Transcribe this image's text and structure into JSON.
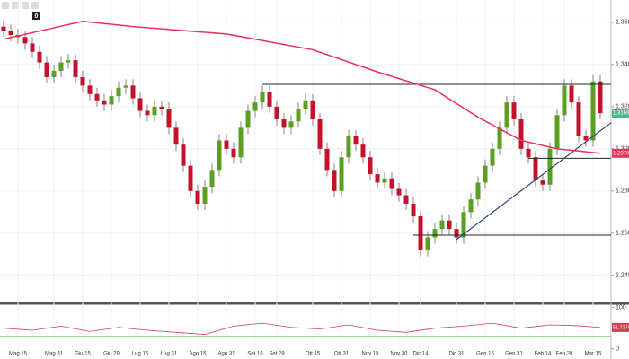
{
  "toolbar": {
    "badge": "0"
  },
  "chart_data": [
    {
      "type": "candlestick",
      "categories": [
        null,
        null,
        "Mag 15",
        null,
        null,
        null,
        null,
        "Mag 31",
        null,
        null,
        null,
        "Giu 15",
        null,
        null,
        null,
        "Giu 29",
        null,
        null,
        null,
        "Lug 16",
        null,
        null,
        null,
        "Lug 31",
        null,
        null,
        null,
        "Ago 15",
        null,
        null,
        null,
        "Ago 31",
        null,
        null,
        null,
        "Set 15",
        null,
        null,
        "Set 28",
        null,
        null,
        null,
        null,
        "Ott 15",
        null,
        null,
        null,
        "Ott 31",
        null,
        null,
        null,
        "Nov 15",
        null,
        null,
        null,
        "Nov 30",
        null,
        null,
        "Dic 14",
        null,
        null,
        null,
        null,
        "Dic 31",
        null,
        null,
        null,
        "Gen 15",
        null,
        null,
        null,
        "Gen 31",
        null,
        null,
        null,
        "Feb 14",
        null,
        null,
        "Feb 28",
        null,
        null,
        null,
        "Mar 15",
        null
      ],
      "open": [
        1.358,
        1.356,
        1.354,
        1.353,
        1.35,
        1.346,
        1.341,
        1.334,
        1.337,
        1.341,
        1.342,
        1.334,
        1.33,
        1.326,
        1.323,
        1.321,
        1.325,
        1.329,
        1.33,
        1.324,
        1.318,
        1.316,
        1.32,
        1.319,
        1.31,
        1.302,
        1.292,
        1.28,
        1.274,
        1.282,
        1.29,
        1.304,
        1.3,
        1.296,
        1.31,
        1.318,
        1.322,
        1.327,
        1.32,
        1.314,
        1.31,
        1.313,
        1.319,
        1.323,
        1.314,
        1.3,
        1.29,
        1.28,
        1.296,
        1.306,
        1.302,
        1.296,
        1.288,
        1.284,
        1.286,
        1.281,
        1.278,
        1.274,
        1.268,
        1.252,
        1.258,
        1.262,
        1.266,
        1.262,
        1.258,
        1.27,
        1.276,
        1.284,
        1.292,
        1.3,
        1.31,
        1.322,
        1.314,
        1.3,
        1.296,
        1.285,
        1.283,
        1.3,
        1.316,
        1.33,
        1.322,
        1.306,
        1.304,
        1.332
      ],
      "high": [
        1.361,
        1.359,
        1.357,
        1.356,
        1.353,
        1.349,
        1.344,
        1.34,
        1.344,
        1.345,
        1.345,
        1.337,
        1.333,
        1.329,
        1.326,
        1.328,
        1.332,
        1.333,
        1.333,
        1.327,
        1.321,
        1.323,
        1.323,
        1.322,
        1.313,
        1.305,
        1.295,
        1.283,
        1.285,
        1.293,
        1.307,
        1.307,
        1.303,
        1.313,
        1.321,
        1.325,
        1.33,
        1.33,
        1.323,
        1.317,
        1.316,
        1.322,
        1.326,
        1.326,
        1.317,
        1.303,
        1.293,
        1.299,
        1.309,
        1.309,
        1.305,
        1.299,
        1.291,
        1.289,
        1.289,
        1.284,
        1.281,
        1.277,
        1.271,
        1.261,
        1.265,
        1.269,
        1.269,
        1.265,
        1.273,
        1.279,
        1.287,
        1.295,
        1.303,
        1.313,
        1.325,
        1.325,
        1.317,
        1.303,
        1.299,
        1.288,
        1.303,
        1.319,
        1.333,
        1.333,
        1.325,
        1.309,
        1.335,
        1.335
      ],
      "low": [
        1.353,
        1.351,
        1.35,
        1.347,
        1.343,
        1.338,
        1.331,
        1.331,
        1.334,
        1.338,
        1.331,
        1.327,
        1.323,
        1.32,
        1.318,
        1.318,
        1.322,
        1.326,
        1.321,
        1.315,
        1.313,
        1.313,
        1.316,
        1.307,
        1.299,
        1.289,
        1.277,
        1.271,
        1.271,
        1.279,
        1.287,
        1.297,
        1.293,
        1.293,
        1.307,
        1.315,
        1.319,
        1.317,
        1.311,
        1.307,
        1.307,
        1.31,
        1.316,
        1.311,
        1.297,
        1.287,
        1.277,
        1.277,
        1.293,
        1.299,
        1.293,
        1.285,
        1.281,
        1.281,
        1.278,
        1.275,
        1.271,
        1.265,
        1.249,
        1.249,
        1.255,
        1.259,
        1.259,
        1.255,
        1.255,
        1.267,
        1.273,
        1.281,
        1.289,
        1.297,
        1.307,
        1.311,
        1.297,
        1.293,
        1.282,
        1.28,
        1.28,
        1.297,
        1.313,
        1.319,
        1.303,
        1.301,
        1.301,
        1.314
      ],
      "close": [
        1.356,
        1.354,
        1.353,
        1.35,
        1.346,
        1.341,
        1.334,
        1.337,
        1.341,
        1.342,
        1.334,
        1.33,
        1.326,
        1.323,
        1.321,
        1.325,
        1.329,
        1.33,
        1.324,
        1.318,
        1.316,
        1.32,
        1.319,
        1.31,
        1.302,
        1.292,
        1.28,
        1.274,
        1.282,
        1.29,
        1.304,
        1.3,
        1.296,
        1.31,
        1.318,
        1.322,
        1.327,
        1.32,
        1.314,
        1.31,
        1.313,
        1.319,
        1.323,
        1.314,
        1.3,
        1.29,
        1.28,
        1.296,
        1.306,
        1.302,
        1.296,
        1.288,
        1.284,
        1.286,
        1.281,
        1.278,
        1.274,
        1.268,
        1.252,
        1.258,
        1.262,
        1.266,
        1.262,
        1.258,
        1.27,
        1.276,
        1.284,
        1.292,
        1.3,
        1.31,
        1.322,
        1.314,
        1.3,
        1.296,
        1.285,
        1.283,
        1.3,
        1.316,
        1.33,
        1.322,
        1.306,
        1.304,
        1.332,
        1.3169
      ],
      "up_color": "#5a9e22",
      "down_color": "#c3132b",
      "ylim": [
        1.228,
        1.3706
      ],
      "yticks": [
        {
          "value": 1.24,
          "label": "1.2400"
        },
        {
          "value": 1.26,
          "label": "1.2600"
        },
        {
          "value": 1.28,
          "label": "1.2800"
        },
        {
          "value": 1.3,
          "label": "1.3000"
        },
        {
          "value": 1.32,
          "label": "1.3200"
        },
        {
          "value": 1.34,
          "label": "1.3400"
        },
        {
          "value": 1.36,
          "label": "1.3600"
        }
      ],
      "grid": true,
      "moving_average": {
        "color": "#e8305a",
        "x": [
          0,
          11,
          18,
          31,
          43,
          52,
          60,
          66,
          72,
          77,
          83
        ],
        "values": [
          1.352,
          1.3605,
          1.358,
          1.3545,
          1.347,
          1.3365,
          1.328,
          1.315,
          1.304,
          1.3,
          1.2979
        ]
      },
      "levels": [
        {
          "value": 1.3306,
          "from": 36
        },
        {
          "value": 1.2591,
          "from": 57
        },
        {
          "value": 1.2955,
          "from": 73
        }
      ],
      "trendline": {
        "color": "#2a4a7a",
        "x": [
          63,
          83
        ],
        "values": [
          1.257,
          1.3085
        ]
      },
      "price_marker": {
        "value": 1.3169,
        "color": "#4bb88a"
      },
      "ma_marker": {
        "value": 1.2979,
        "color": "#e8305a"
      }
    },
    {
      "type": "line",
      "x": [
        0,
        4,
        8,
        12,
        16,
        20,
        24,
        28,
        32,
        36,
        40,
        44,
        48,
        52,
        56,
        60,
        64,
        68,
        72,
        76,
        80,
        83
      ],
      "values": [
        50,
        45,
        55,
        42,
        52,
        45,
        40,
        35,
        55,
        62,
        52,
        48,
        58,
        45,
        40,
        50,
        55,
        62,
        50,
        58,
        56,
        51.7379
      ],
      "color": "#d04050",
      "ylim": [
        -20,
        110
      ],
      "yticks": [
        0,
        100
      ],
      "levels": [
        {
          "value": 70,
          "color": "#e05050"
        },
        {
          "value": 30,
          "color": "#40b040"
        }
      ],
      "marker": {
        "value": 51.7379,
        "color": "#d04050"
      }
    }
  ]
}
